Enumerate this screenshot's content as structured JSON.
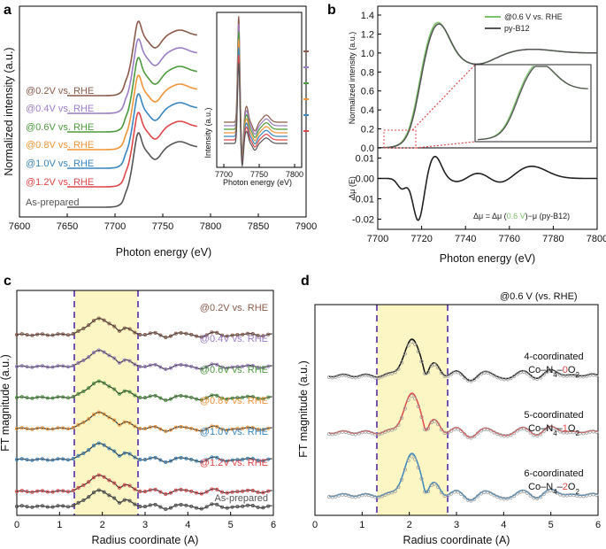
{
  "colors": {
    "brown": "#8b5a4a",
    "purple": "#9a7dc6",
    "green": "#4d9a3e",
    "orange": "#f0953a",
    "blue": "#3a86c0",
    "red": "#e0474a",
    "gray": "#444444",
    "black": "#111111",
    "highlight": "#fbf6c4",
    "dash": "#7a55b5",
    "lightgreen": "#7cc36b"
  },
  "chart_data": [
    {
      "panel": "a",
      "type": "line",
      "xlabel": "Photon energy (eV)",
      "ylabel": "Normalized intensity (a.u.)",
      "xlim": [
        7600,
        7900
      ],
      "xticks": [
        "7600",
        "7650",
        "7700",
        "7750",
        "7800",
        "7850",
        "7900"
      ],
      "series": [
        {
          "name": "@0.2V vs. RHE",
          "color": "#8b5a4a"
        },
        {
          "name": "@0.4V vs. RHE",
          "color": "#9a7dc6"
        },
        {
          "name": "@0.6V vs. RHE",
          "color": "#4d9a3e"
        },
        {
          "name": "@0.8V vs. RHE",
          "color": "#f0953a"
        },
        {
          "name": "@1.0V vs. RHE",
          "color": "#3a86c0"
        },
        {
          "name": "@1.2V vs. RHE",
          "color": "#e0474a"
        },
        {
          "name": "As-prepared",
          "color": "#555555"
        }
      ],
      "inset": {
        "xlabel": "Photon energy (eV)",
        "ylabel": "Intensity (a.u.)",
        "xlim": [
          7690,
          7810
        ],
        "xticks": [
          "7700",
          "7750",
          "7800"
        ]
      }
    },
    {
      "panel": "b",
      "type": "line",
      "top": {
        "ylabel": "Normalized intensity (a.u.)",
        "ylim": [
          0,
          1.4
        ],
        "yticks": [
          "0.0",
          "0.2",
          "0.4",
          "0.6",
          "0.8",
          "1.0",
          "1.2",
          "1.4"
        ],
        "series": [
          {
            "name": "@0.6 V vs. RHE",
            "color": "#7cc36b"
          },
          {
            "name": "py-B12",
            "color": "#555555"
          }
        ]
      },
      "bottom": {
        "ylabel": "Δμ (E)",
        "ylim": [
          -0.025,
          0.015
        ],
        "yticks": [
          "0.01",
          "0.00",
          "-0.01",
          "-0.02"
        ],
        "annotation_pre": "Δμ = Δμ (",
        "annotation_mid": "0.6 V",
        "annotation_post": ")−μ (py-B12)"
      },
      "xlabel": "Photon energy (eV)",
      "xlim": [
        7700,
        7800
      ],
      "xticks": [
        "7700",
        "7720",
        "7740",
        "7760",
        "7780",
        "7800"
      ]
    },
    {
      "panel": "c",
      "type": "line",
      "xlabel": "Radius coordinate (A)",
      "ylabel": "FT magnitude (a.u.)",
      "xlim": [
        0,
        6
      ],
      "xticks": [
        "0",
        "1",
        "2",
        "3",
        "4",
        "5",
        "6"
      ],
      "highlight_x": [
        1.4,
        2.85
      ],
      "series": [
        {
          "name": "@0.2V vs. RHE",
          "color": "#8b5a4a"
        },
        {
          "name": "@0.4V vs. RHE",
          "color": "#9a7dc6"
        },
        {
          "name": "@0.6V vs. RHE",
          "color": "#4d9a3e"
        },
        {
          "name": "@0.8V vs. RHE",
          "color": "#f0953a"
        },
        {
          "name": "@1.0V vs. RHE",
          "color": "#3a86c0"
        },
        {
          "name": "@1.2V vs. RHE",
          "color": "#e0474a"
        },
        {
          "name": "As-prepared",
          "color": "#555555"
        }
      ]
    },
    {
      "panel": "d",
      "type": "line",
      "title": "@0.6 V (vs. RHE)",
      "xlabel": "Radius coordinate (A)",
      "ylabel": "FT magnitude (a.u.)",
      "xlim": [
        0,
        6
      ],
      "xticks": [
        "0",
        "1",
        "2",
        "3",
        "4",
        "5",
        "6"
      ],
      "highlight_x": [
        1.3,
        2.8
      ],
      "series": [
        {
          "label1": "4-coordinated",
          "pre": "Co–N",
          "sub1": "4",
          "sep": "–",
          "num": "0",
          "o": "O",
          "sub2": "2",
          "color": "#111111"
        },
        {
          "label1": "5-coordinated",
          "pre": "Co–N",
          "sub1": "4",
          "sep": "–",
          "num": "1",
          "o": "O",
          "sub2": "2",
          "color": "#e0474a"
        },
        {
          "label1": "6-coordinated",
          "pre": "Co–N",
          "sub1": "4",
          "sep": "–",
          "num": "2",
          "o": "O",
          "sub2": "2",
          "color": "#3a86c0"
        }
      ]
    }
  ],
  "panel_labels": {
    "a": "a",
    "b": "b",
    "c": "c",
    "d": "d"
  }
}
